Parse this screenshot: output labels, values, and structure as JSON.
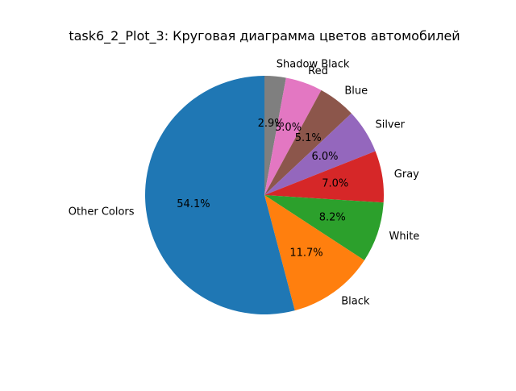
{
  "chart_data": {
    "type": "pie",
    "title": "task6_2_Plot_3: Круговая диаграмма цветов автомобилей",
    "start_angle_deg": 90,
    "direction": "clockwise",
    "slices": [
      {
        "label": "Shadow Black",
        "percent": 2.9,
        "pct_label": "2.9%",
        "color": "#7f7f7f"
      },
      {
        "label": "Red",
        "percent": 5.0,
        "pct_label": "5.0%",
        "color": "#e377c2"
      },
      {
        "label": "Blue",
        "percent": 5.1,
        "pct_label": "5.1%",
        "color": "#8c564b"
      },
      {
        "label": "Silver",
        "percent": 6.0,
        "pct_label": "6.0%",
        "color": "#9467bd"
      },
      {
        "label": "Gray",
        "percent": 7.0,
        "pct_label": "7.0%",
        "color": "#d62728"
      },
      {
        "label": "White",
        "percent": 8.2,
        "pct_label": "8.2%",
        "color": "#2ca02c"
      },
      {
        "label": "Black",
        "percent": 11.7,
        "pct_label": "11.7%",
        "color": "#ff7f0e"
      },
      {
        "label": "Other Colors",
        "percent": 54.1,
        "pct_label": "54.1%",
        "color": "#1f77b4"
      }
    ]
  }
}
